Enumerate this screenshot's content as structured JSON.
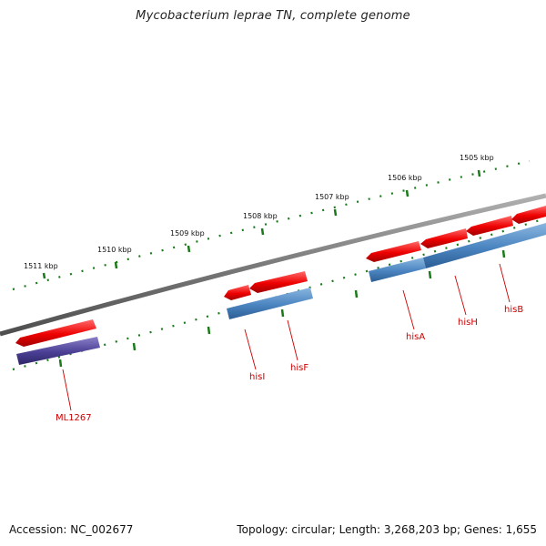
{
  "title": "Mycobacterium leprae TN, complete genome",
  "footer": {
    "accession": "Accession: NC_002677",
    "stats": "Topology: circular; Length: 3,268,203 bp; Genes: 1,655"
  },
  "scale_labels": [
    "1511 kbp",
    "1510 kbp",
    "1509 kbp",
    "1508 kbp",
    "1507 kbp",
    "1506 kbp",
    "1505 kbp"
  ],
  "gene_labels": [
    "ML1267",
    "hisI",
    "hisF",
    "hisA",
    "hisH",
    "hisB"
  ],
  "colors": {
    "backbone": "#808080",
    "ticks": "#1a7a1a",
    "gene_arrow": "#ee0000",
    "cds_blue": "#4a84c0",
    "cds_purple": "#4a3f94",
    "label": "#cc0000"
  }
}
